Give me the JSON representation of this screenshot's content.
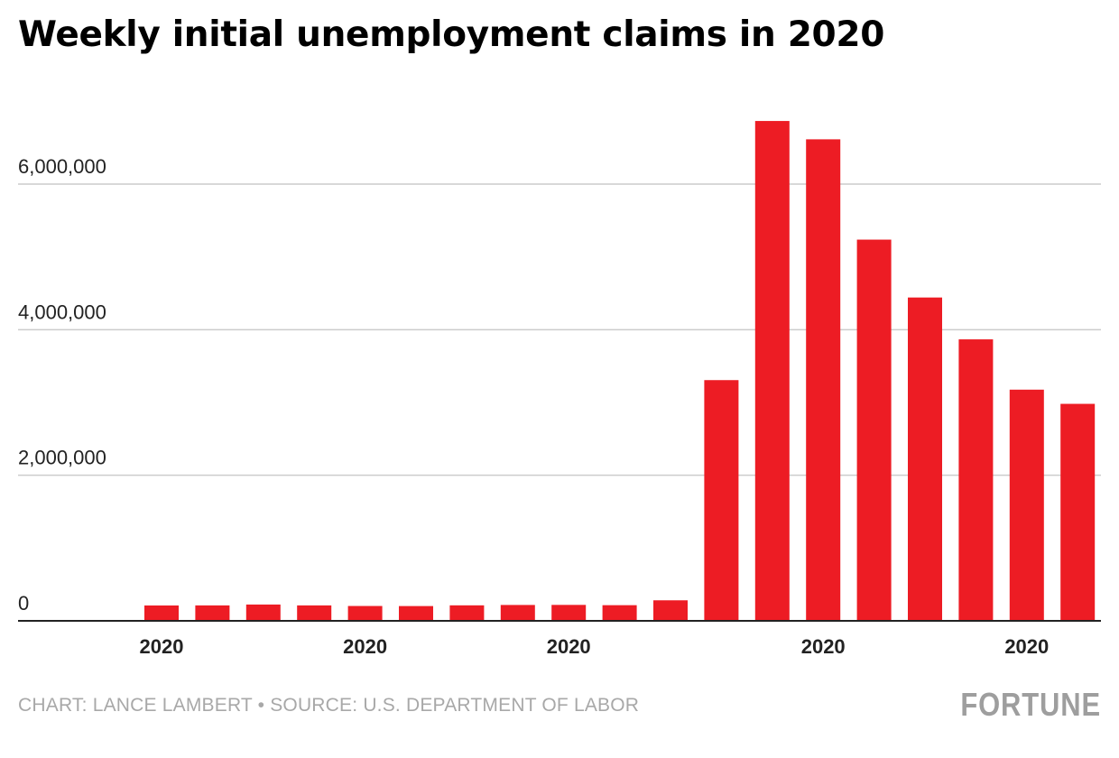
{
  "title": "Weekly initial unemployment claims in 2020",
  "footer": {
    "source": "CHART: LANCE LAMBERT • SOURCE: U.S. DEPARTMENT OF LABOR",
    "brand": "FORTUNE"
  },
  "colors": {
    "bar": "#ed1c24",
    "grid": "#cccccc",
    "axis": "#222222"
  },
  "chart_data": {
    "type": "bar",
    "title": "Weekly initial unemployment claims in 2020",
    "xlabel": "",
    "ylabel": "",
    "ylim": [
      0,
      7000000
    ],
    "grid": true,
    "yticks": [
      {
        "value": 0,
        "label": "0"
      },
      {
        "value": 2000000,
        "label": "2,000,000"
      },
      {
        "value": 4000000,
        "label": "4,000,000"
      },
      {
        "value": 6000000,
        "label": "6,000,000"
      }
    ],
    "xtick_labels": [
      {
        "index": 0,
        "label": "2020"
      },
      {
        "index": 4,
        "label": "2020"
      },
      {
        "index": 8,
        "label": "2020"
      },
      {
        "index": 13,
        "label": "2020"
      },
      {
        "index": 17,
        "label": "2020"
      }
    ],
    "values": [
      211000,
      212000,
      224000,
      212000,
      204000,
      203000,
      213000,
      218000,
      219000,
      215000,
      282000,
      3307000,
      6867000,
      6615000,
      5237000,
      4442000,
      3867000,
      3176000,
      2981000
    ]
  }
}
